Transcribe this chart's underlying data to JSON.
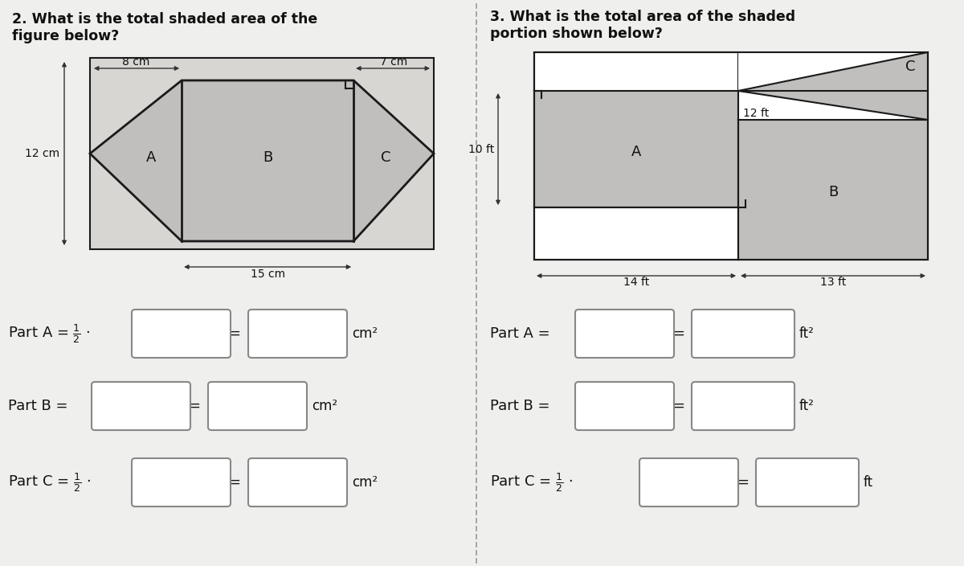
{
  "bg_color": "#efefed",
  "q2": {
    "title_line1": "2. What is the total shaded area of the",
    "title_line2": "figure below?",
    "dim_8cm": "8 cm",
    "dim_7cm": "7 cm",
    "dim_12cm": "12 cm",
    "dim_15cm": "15 cm",
    "label_A": "A",
    "label_B": "B",
    "label_C": "C",
    "shaded_color": "#c0bfbd",
    "outline_color": "#1a1a1a",
    "outer_rect_color": "#d8d6d3"
  },
  "q3": {
    "title_line1": "3. What is the total area of the shaded",
    "title_line2": "portion shown below?",
    "dim_10ft": "10 ft",
    "dim_12ft": "12 ft",
    "dim_14ft": "14 ft",
    "dim_13ft": "13 ft",
    "label_A": "A",
    "label_B": "B",
    "label_C": "C",
    "shaded_color": "#c0bfbd",
    "outline_color": "#1a1a1a",
    "outer_rect_color": "#d8d6d3"
  }
}
